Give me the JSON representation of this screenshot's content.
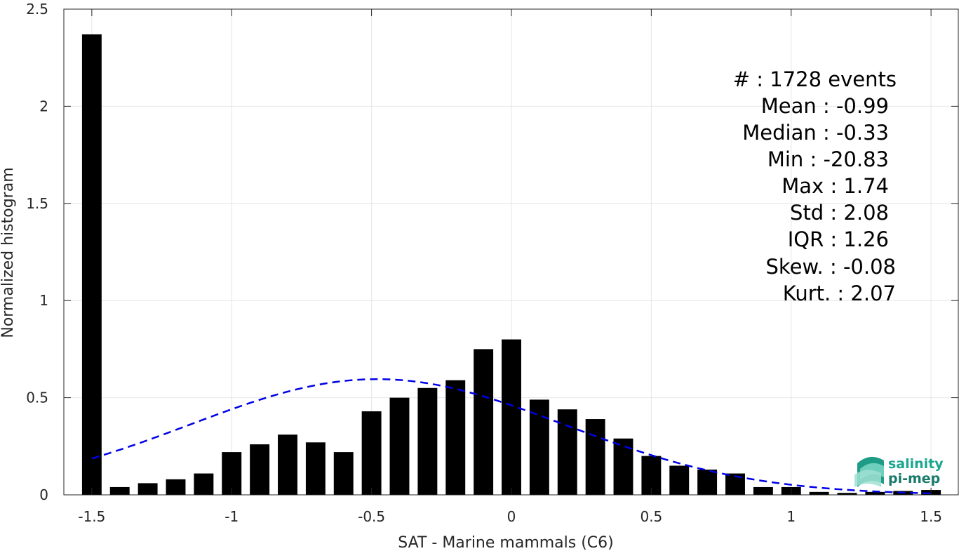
{
  "chart_data": {
    "type": "bar",
    "title": "",
    "xlabel": "SAT - Marine mammals (C6)",
    "ylabel": "Normalized histogram",
    "xlim": [
      -1.6,
      1.6
    ],
    "ylim": [
      0,
      2.5
    ],
    "xticks": [
      -1.5,
      -1,
      -0.5,
      0,
      0.5,
      1,
      1.5
    ],
    "xtick_labels": [
      "-1.5",
      "-1",
      "-0.5",
      "0",
      "0.5",
      "1",
      "1.5"
    ],
    "yticks": [
      0,
      0.5,
      1,
      1.5,
      2,
      2.5
    ],
    "ytick_labels": [
      "0",
      "0.5",
      "1",
      "1.5",
      "2",
      "2.5"
    ],
    "grid": true,
    "bar_color": "#000000",
    "bins": [
      {
        "x": -1.5,
        "value": 2.37
      },
      {
        "x": -1.4,
        "value": 0.04
      },
      {
        "x": -1.3,
        "value": 0.06
      },
      {
        "x": -1.2,
        "value": 0.08
      },
      {
        "x": -1.1,
        "value": 0.11
      },
      {
        "x": -1.0,
        "value": 0.22
      },
      {
        "x": -0.9,
        "value": 0.26
      },
      {
        "x": -0.8,
        "value": 0.31
      },
      {
        "x": -0.7,
        "value": 0.27
      },
      {
        "x": -0.6,
        "value": 0.22
      },
      {
        "x": -0.5,
        "value": 0.43
      },
      {
        "x": -0.4,
        "value": 0.5
      },
      {
        "x": -0.3,
        "value": 0.55
      },
      {
        "x": -0.2,
        "value": 0.59
      },
      {
        "x": -0.1,
        "value": 0.75
      },
      {
        "x": 0.0,
        "value": 0.8
      },
      {
        "x": 0.1,
        "value": 0.49
      },
      {
        "x": 0.2,
        "value": 0.44
      },
      {
        "x": 0.3,
        "value": 0.39
      },
      {
        "x": 0.4,
        "value": 0.29
      },
      {
        "x": 0.5,
        "value": 0.2
      },
      {
        "x": 0.6,
        "value": 0.15
      },
      {
        "x": 0.7,
        "value": 0.13
      },
      {
        "x": 0.8,
        "value": 0.11
      },
      {
        "x": 0.9,
        "value": 0.04
      },
      {
        "x": 1.0,
        "value": 0.04
      },
      {
        "x": 1.1,
        "value": 0.015
      },
      {
        "x": 1.2,
        "value": 0.01
      },
      {
        "x": 1.3,
        "value": 0.015
      },
      {
        "x": 1.4,
        "value": 0.02
      },
      {
        "x": 1.5,
        "value": 0.025
      }
    ],
    "fit_curve": {
      "style": "dashed",
      "color": "#0000e6",
      "mean": -0.48,
      "std": 0.67,
      "x_range": [
        -1.5,
        1.5
      ]
    },
    "annotations": [
      "#  : 1728 events",
      "Mean : -0.99",
      "Median : -0.33",
      "Min : -20.83",
      "Max : 1.74",
      "Std : 2.08",
      "IQR : 1.26",
      "Skew. : -0.08",
      "Kurt. : 2.07"
    ]
  },
  "logo": {
    "line1": "salinity",
    "line2": "pi-mep"
  }
}
